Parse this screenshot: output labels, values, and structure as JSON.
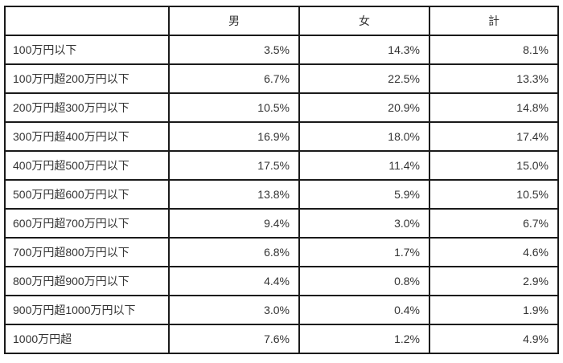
{
  "table": {
    "headers": {
      "category": "",
      "male": "男",
      "female": "女",
      "total": "計"
    },
    "rows": [
      {
        "label": "100万円以下",
        "male": "3.5%",
        "female": "14.3%",
        "total": "8.1%"
      },
      {
        "label": "100万円超200万円以下",
        "male": "6.7%",
        "female": "22.5%",
        "total": "13.3%"
      },
      {
        "label": "200万円超300万円以下",
        "male": "10.5%",
        "female": "20.9%",
        "total": "14.8%"
      },
      {
        "label": "300万円超400万円以下",
        "male": "16.9%",
        "female": "18.0%",
        "total": "17.4%"
      },
      {
        "label": "400万円超500万円以下",
        "male": "17.5%",
        "female": "11.4%",
        "total": "15.0%"
      },
      {
        "label": "500万円超600万円以下",
        "male": "13.8%",
        "female": "5.9%",
        "total": "10.5%"
      },
      {
        "label": "600万円超700万円以下",
        "male": "9.4%",
        "female": "3.0%",
        "total": "6.7%"
      },
      {
        "label": "700万円超800万円以下",
        "male": "6.8%",
        "female": "1.7%",
        "total": "4.6%"
      },
      {
        "label": "800万円超900万円以下",
        "male": "4.4%",
        "female": "0.8%",
        "total": "2.9%"
      },
      {
        "label": "900万円超1000万円以下",
        "male": "3.0%",
        "female": "0.4%",
        "total": "1.9%"
      },
      {
        "label": "1000万円超",
        "male": "7.6%",
        "female": "1.2%",
        "total": "4.9%"
      }
    ]
  },
  "colors": {
    "border": "#1a1a1a",
    "text": "#333333",
    "background": "#ffffff"
  }
}
